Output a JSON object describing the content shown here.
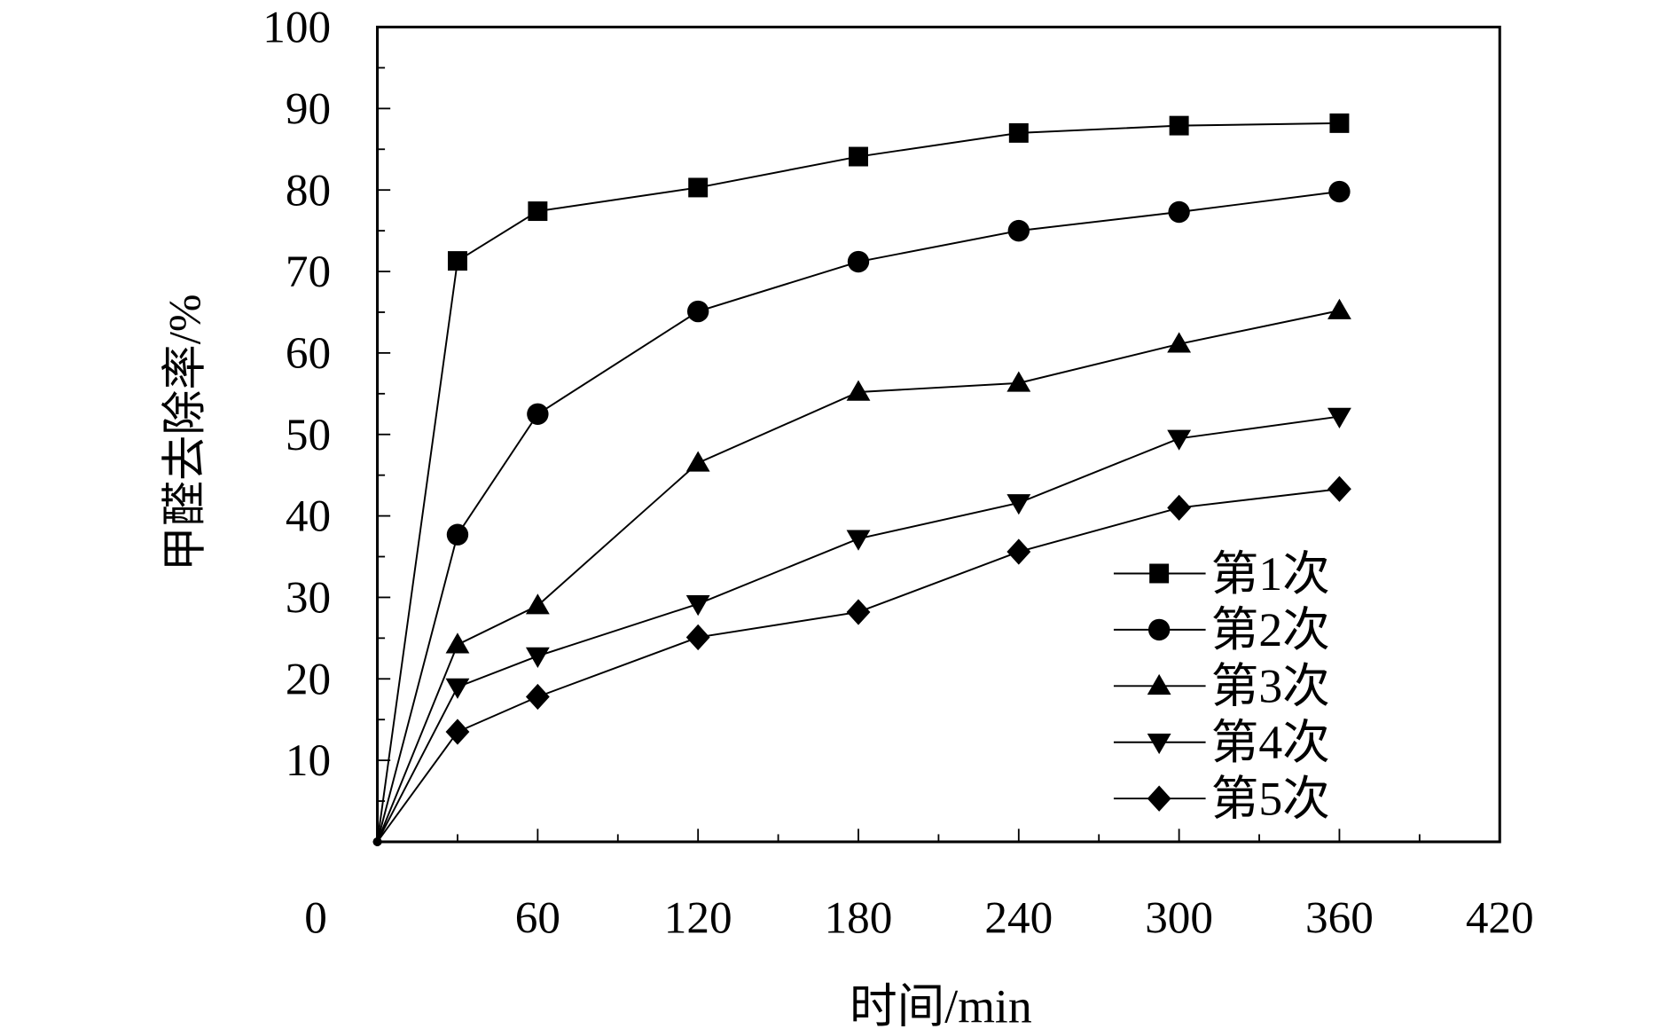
{
  "chart_data": {
    "type": "line",
    "title": "",
    "xlabel": "时间/min",
    "ylabel": "甲醛去除率/%",
    "xlim": [
      0,
      420
    ],
    "ylim": [
      0,
      100
    ],
    "xticks": [
      0,
      60,
      120,
      180,
      240,
      300,
      360,
      420
    ],
    "xtick_labels": [
      "0",
      "60",
      "120",
      "180",
      "240",
      "300",
      "360",
      "420"
    ],
    "yticks": [
      10,
      20,
      30,
      40,
      50,
      60,
      70,
      80,
      90,
      100
    ],
    "ytick_labels": [
      "10",
      "20",
      "30",
      "40",
      "50",
      "60",
      "70",
      "80",
      "90",
      "100"
    ],
    "grid": false,
    "legend_position": "bottom-right",
    "x": [
      0,
      30,
      60,
      120,
      180,
      240,
      300,
      360
    ],
    "series": [
      {
        "name": "第1次",
        "marker": "square",
        "values": [
          0,
          71.3,
          77.4,
          80.3,
          84.1,
          87.0,
          87.9,
          88.2
        ]
      },
      {
        "name": "第2次",
        "marker": "circle",
        "values": [
          0,
          37.7,
          52.5,
          65.1,
          71.2,
          75.0,
          77.3,
          79.8
        ]
      },
      {
        "name": "第3次",
        "marker": "triangle-up",
        "values": [
          0,
          24.2,
          29.0,
          46.5,
          55.2,
          56.3,
          61.1,
          65.2
        ]
      },
      {
        "name": "第4次",
        "marker": "triangle-down",
        "values": [
          0,
          19.0,
          22.8,
          29.2,
          37.2,
          41.6,
          49.5,
          52.2
        ]
      },
      {
        "name": "第5次",
        "marker": "diamond",
        "values": [
          0,
          13.5,
          17.8,
          25.1,
          28.2,
          35.6,
          41.0,
          43.3
        ]
      }
    ]
  }
}
